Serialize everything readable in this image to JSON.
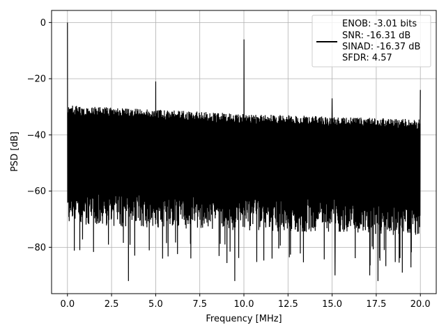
{
  "chart_data": {
    "type": "line",
    "title": "",
    "xlabel": "Frequency [MHz]",
    "ylabel": "PSD [dB]",
    "xlim": [
      -0.9,
      20.9
    ],
    "ylim": [
      -96.5,
      4.3
    ],
    "xticks": [
      0.0,
      2.5,
      5.0,
      7.5,
      10.0,
      12.5,
      15.0,
      17.5,
      20.0
    ],
    "xtick_labels": [
      "0.0",
      "2.5",
      "5.0",
      "7.5",
      "10.0",
      "12.5",
      "15.0",
      "17.5",
      "20.0"
    ],
    "yticks": [
      0,
      -20,
      -40,
      -60,
      -80
    ],
    "ytick_labels": [
      "0",
      "−20",
      "−40",
      "−60",
      "−80"
    ],
    "grid": true,
    "legend_position": "top-right",
    "legend_lines": [
      "ENOB: -3.01 bits",
      "SNR: -16.31 dB",
      "SINAD: -16.37 dB",
      "SFDR: 4.57"
    ],
    "series": [
      {
        "color": "#000000",
        "x_range": [
          0.0,
          20.0
        ],
        "noise_upper_envelope": {
          "x": [
            0.0,
            10.0,
            20.0
          ],
          "y": [
            -29.5,
            -32.5,
            -34.5
          ]
        },
        "noise_lower_envelope": {
          "x": [
            0.0,
            10.0,
            20.0
          ],
          "y": [
            -72,
            -74,
            -76
          ]
        },
        "noise_min_dips": [
          -92,
          -90,
          -89,
          -92,
          -91,
          -92
        ],
        "peaks": [
          {
            "x": 0.0,
            "y": 0.0
          },
          {
            "x": 5.0,
            "y": -21.0
          },
          {
            "x": 10.0,
            "y": -6.0
          },
          {
            "x": 15.0,
            "y": -27.0
          },
          {
            "x": 20.0,
            "y": -24.0
          }
        ]
      }
    ]
  }
}
